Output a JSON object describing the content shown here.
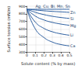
{
  "chart_data": {
    "type": "line",
    "x_label": "Solute content (% by mass)",
    "y_label": "Surface tension (mN/m)",
    "x": [
      0,
      0.1,
      0.2,
      0.3,
      0.4,
      0.5
    ],
    "series": [
      {
        "name": "Ag, Cu, Bi, Mn, Sn",
        "color": "#2a5d9f",
        "values": [
          860,
          860,
          860,
          860,
          860,
          860
        ]
      },
      {
        "name": "Zn",
        "color": "#2a5d9f",
        "values": [
          860,
          850,
          840,
          832,
          826,
          820
        ]
      },
      {
        "name": "Si",
        "color": "#2a5d9f",
        "values": [
          860,
          820,
          790,
          768,
          752,
          740
        ]
      },
      {
        "name": "Mg",
        "color": "#2a5d9f",
        "values": [
          860,
          770,
          720,
          688,
          666,
          650
        ]
      },
      {
        "name": "Li",
        "color": "#2a5d9f",
        "values": [
          860,
          690,
          610,
          565,
          538,
          520
        ]
      },
      {
        "name": "Ca",
        "color": "#2a5d9f",
        "values": [
          860,
          600,
          490,
          430,
          398,
          380
        ]
      }
    ],
    "xlim": [
      0,
      0.5
    ],
    "xticks": [
      0,
      0.1,
      0.2,
      0.3,
      0.4,
      0.5
    ],
    "ylim": [
      300,
      900
    ],
    "yticks": [
      300,
      400,
      500,
      600,
      700,
      800,
      900
    ],
    "grid": true
  }
}
